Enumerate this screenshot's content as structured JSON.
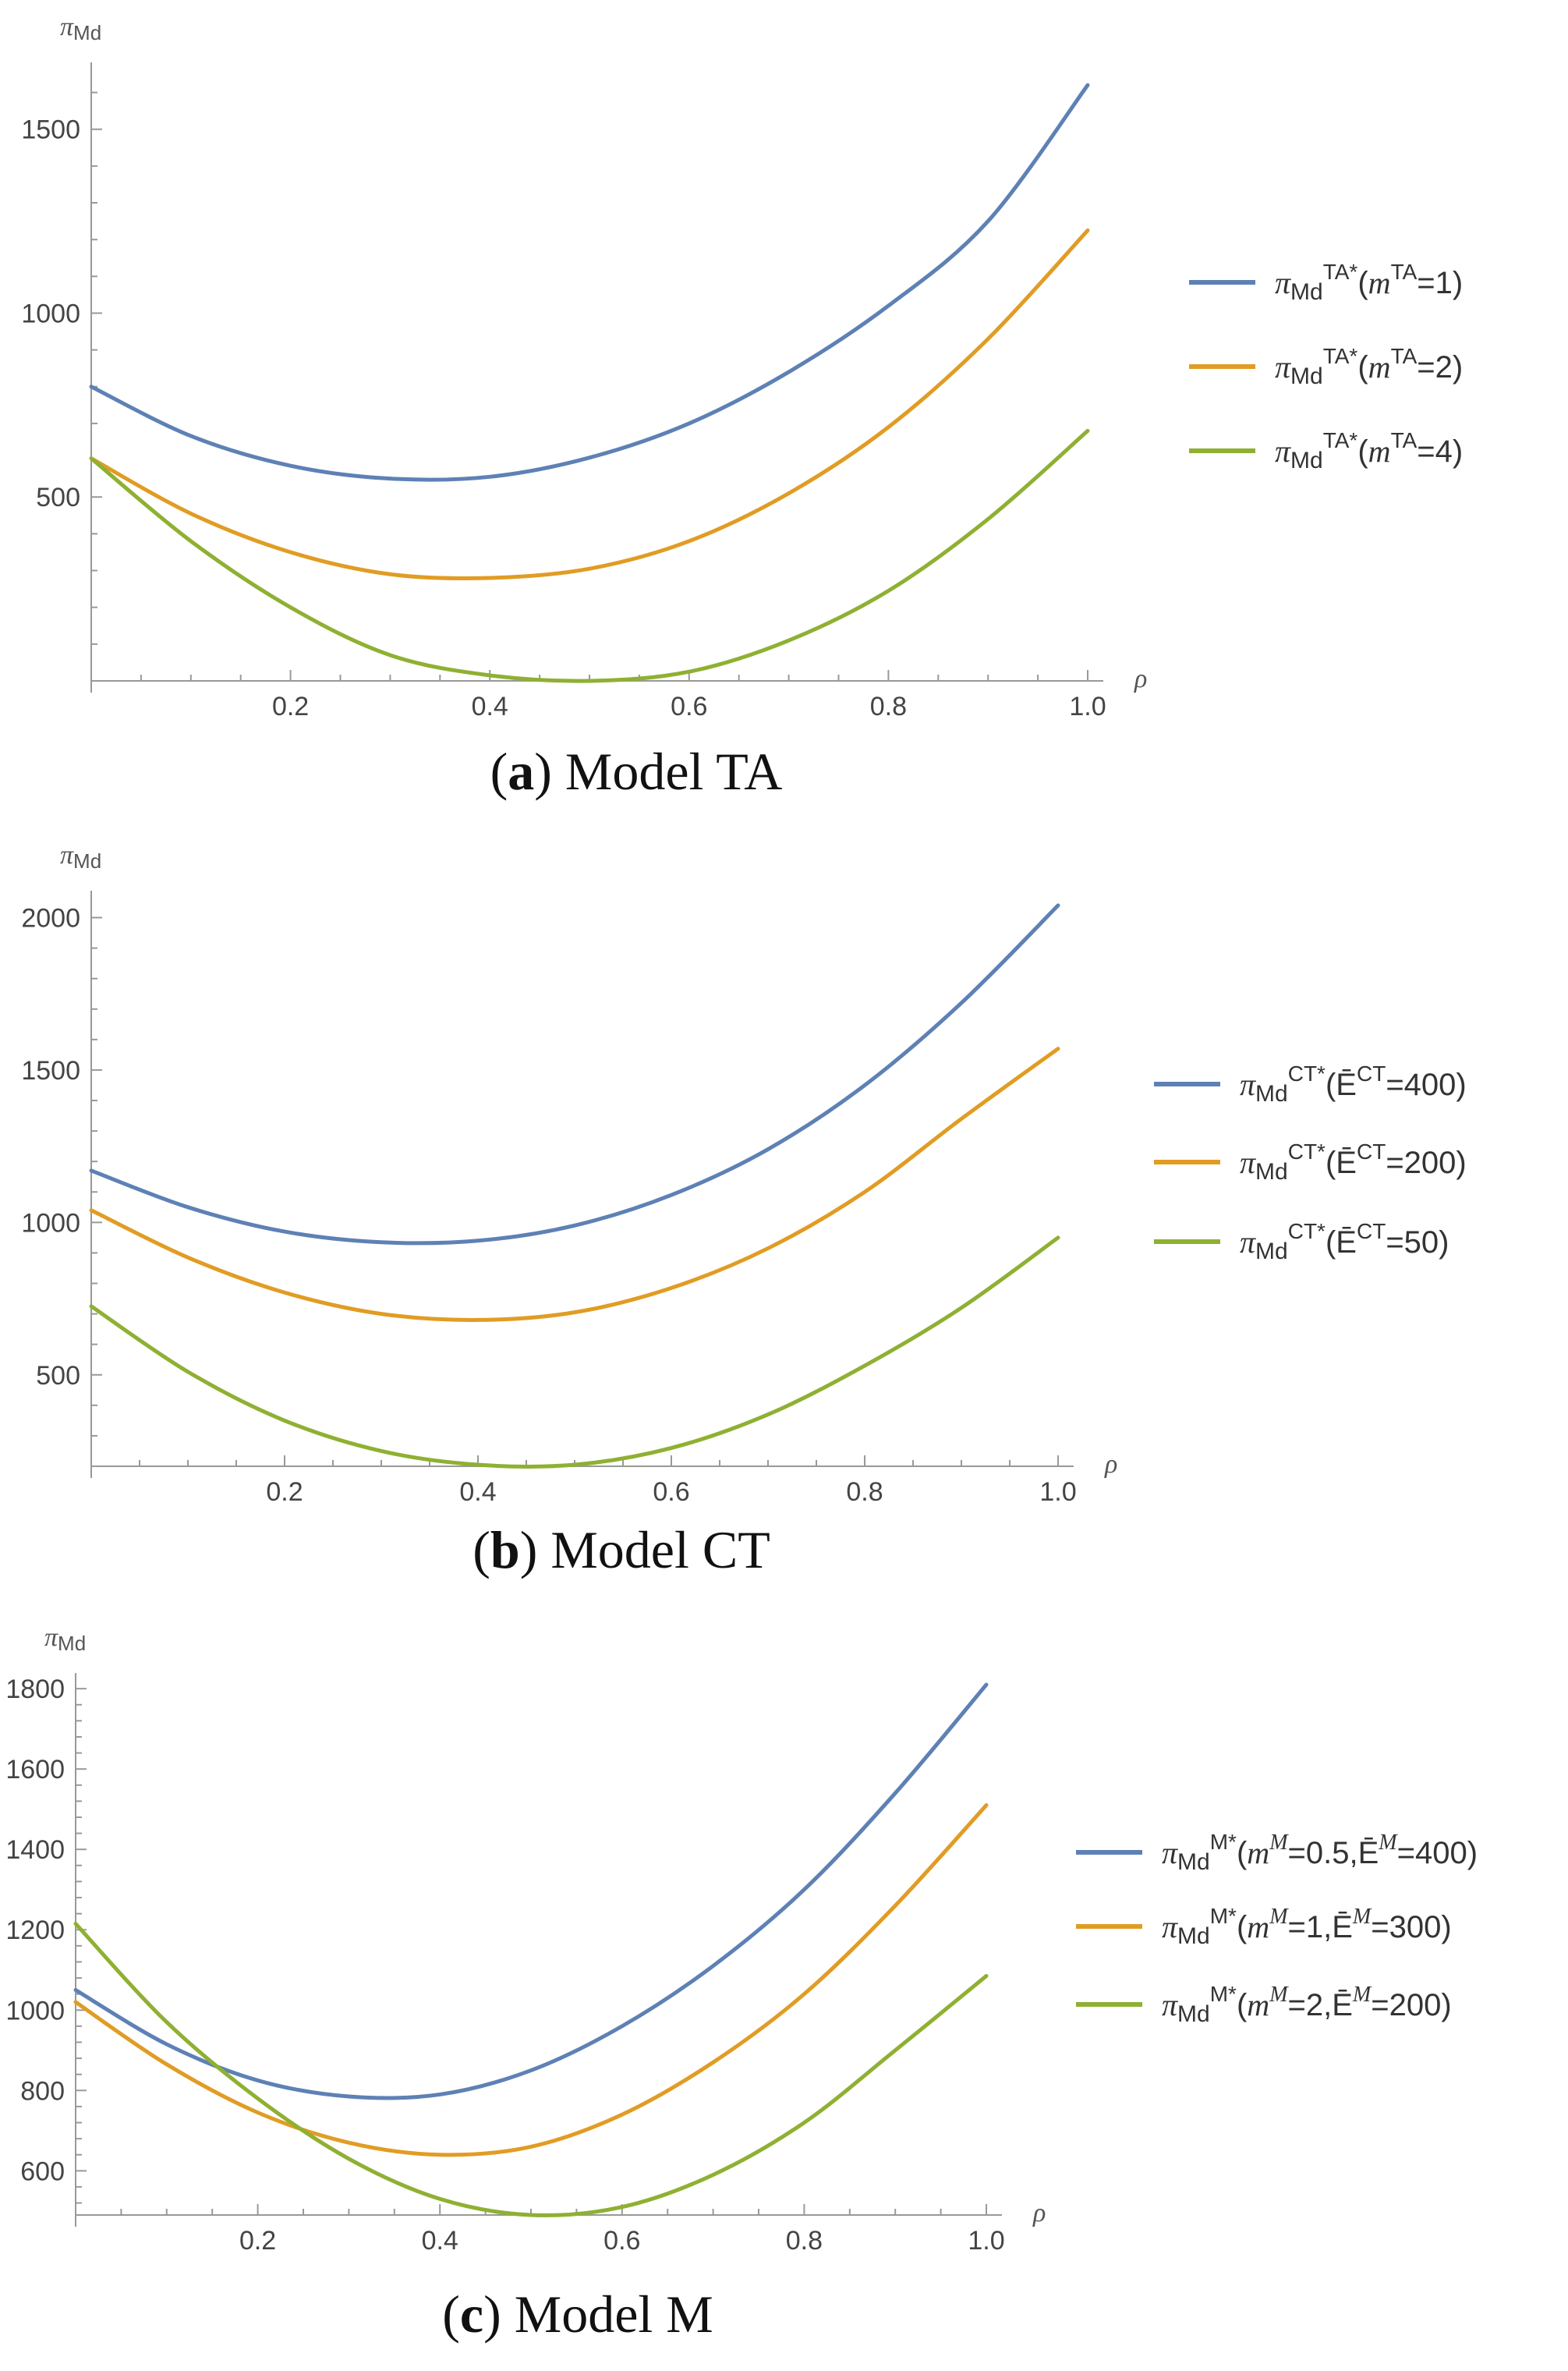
{
  "chart_data": [
    {
      "type": "line",
      "panel_tag": "a",
      "caption": "Model TA",
      "ylabel": "πMd",
      "xlabel": "ρ",
      "xlim": [
        0,
        1.0
      ],
      "ylim": [
        0,
        1650
      ],
      "xticks": [
        0.2,
        0.4,
        0.6,
        0.8,
        1.0
      ],
      "xtick_labels": [
        "0.2",
        "0.4",
        "0.6",
        "0.8",
        "1.0"
      ],
      "yticks": [
        500,
        1000,
        1500
      ],
      "ytick_labels": [
        "500",
        "1000",
        "1500"
      ],
      "x": [
        0,
        0.1,
        0.2,
        0.3,
        0.4,
        0.5,
        0.6,
        0.7,
        0.8,
        0.9,
        1.0
      ],
      "series": [
        {
          "name": "πMdTA*(mTA=1)",
          "legend": {
            "main": "π",
            "sub": "Md",
            "sup": "TA*",
            "var": "m",
            "var_sup": "TA",
            "rest": "=1)"
          },
          "color": "#5e81b5",
          "values": [
            800,
            666,
            585,
            550,
            555,
            607,
            700,
            840,
            1020,
            1250,
            1620
          ]
        },
        {
          "name": "πMdTA*(mTA=2)",
          "legend": {
            "main": "π",
            "sub": "Md",
            "sup": "TA*",
            "var": "m",
            "var_sup": "TA",
            "rest": "=2)"
          },
          "color": "#e19c24",
          "values": [
            605,
            455,
            350,
            290,
            280,
            305,
            380,
            510,
            690,
            930,
            1225
          ]
        },
        {
          "name": "πMdTA*(mTA=4)",
          "legend": {
            "main": "π",
            "sub": "Md",
            "sup": "TA*",
            "var": "m",
            "var_sup": "TA",
            "rest": "=4)"
          },
          "color": "#8fb032",
          "values": [
            605,
            380,
            200,
            70,
            15,
            0,
            25,
            110,
            245,
            440,
            680
          ]
        }
      ]
    },
    {
      "type": "line",
      "panel_tag": "b",
      "caption": "Model CT",
      "ylabel": "πMd",
      "xlabel": "ρ",
      "xlim": [
        0,
        1.0
      ],
      "ylim": [
        200,
        2050
      ],
      "xticks": [
        0.2,
        0.4,
        0.6,
        0.8,
        1.0
      ],
      "xtick_labels": [
        "0.2",
        "0.4",
        "0.6",
        "0.8",
        "1.0"
      ],
      "yticks": [
        500,
        1000,
        1500,
        2000
      ],
      "ytick_labels": [
        "500",
        "1000",
        "1500",
        "2000"
      ],
      "x": [
        0,
        0.1,
        0.2,
        0.3,
        0.4,
        0.5,
        0.6,
        0.7,
        0.8,
        0.9,
        1.0
      ],
      "series": [
        {
          "name": "πMdCT*(ĒCT=400)",
          "legend": {
            "main": "π",
            "sub": "Md",
            "sup": "CT*",
            "var": "Ē",
            "var_sup": "CT",
            "rest": "=400)"
          },
          "color": "#5e81b5",
          "values": [
            1170,
            1050,
            970,
            935,
            940,
            990,
            1090,
            1240,
            1450,
            1720,
            2040
          ]
        },
        {
          "name": "πMdCT*(ĒCT=200)",
          "legend": {
            "main": "π",
            "sub": "Md",
            "sup": "CT*",
            "var": "Ē",
            "var_sup": "CT",
            "rest": "=200)"
          },
          "color": "#e19c24",
          "values": [
            1040,
            885,
            770,
            700,
            680,
            705,
            785,
            915,
            1100,
            1340,
            1570
          ]
        },
        {
          "name": "πMdCT*(ĒCT=50)",
          "legend": {
            "main": "π",
            "sub": "Md",
            "sup": "CT*",
            "var": "Ē",
            "var_sup": "CT",
            "rest": "=50)"
          },
          "color": "#8fb032",
          "values": [
            725,
            510,
            350,
            250,
            205,
            205,
            260,
            370,
            530,
            720,
            950
          ]
        }
      ]
    },
    {
      "type": "line",
      "panel_tag": "c",
      "caption": "Model M",
      "ylabel": "πMd",
      "xlabel": "ρ",
      "xlim": [
        0,
        1.0
      ],
      "ylim": [
        490,
        1810
      ],
      "xticks": [
        0.2,
        0.4,
        0.6,
        0.8,
        1.0
      ],
      "xtick_labels": [
        "0.2",
        "0.4",
        "0.6",
        "0.8",
        "1.0"
      ],
      "yticks": [
        600,
        800,
        1000,
        1200,
        1400,
        1600,
        1800
      ],
      "ytick_labels": [
        "600",
        "800",
        "1000",
        "1200",
        "1400",
        "1600",
        "1800"
      ],
      "x": [
        0,
        0.1,
        0.2,
        0.3,
        0.4,
        0.5,
        0.6,
        0.7,
        0.8,
        0.9,
        1.0
      ],
      "series": [
        {
          "name": "πMdM*(mM=0.5,ĒM=400)",
          "legend": {
            "main": "π",
            "sub": "Md",
            "sup": "M*",
            "var": "m",
            "var_sup": "M",
            "rest": "=0.5,",
            "var2": "Ē",
            "var2_sup": "M",
            "rest2": "=400)"
          },
          "color": "#5e81b5",
          "values": [
            1050,
            915,
            825,
            785,
            790,
            850,
            960,
            1110,
            1300,
            1540,
            1810
          ]
        },
        {
          "name": "πMdM*(mM=1,ĒM=300)",
          "legend": {
            "main": "π",
            "sub": "Md",
            "sup": "M*",
            "var": "m",
            "var_sup": "M",
            "rest": "=1,",
            "var2": "Ē",
            "var2_sup": "M",
            "rest2": "=300)"
          },
          "color": "#e19c24",
          "values": [
            1020,
            865,
            745,
            670,
            640,
            660,
            740,
            870,
            1040,
            1260,
            1510
          ]
        },
        {
          "name": "πMdM*(mM=2,ĒM=200)",
          "legend": {
            "main": "π",
            "sub": "Md",
            "sup": "M*",
            "var": "m",
            "var_sup": "M",
            "rest": "=2,",
            "var2": "Ē",
            "var2_sup": "M",
            "rest2": "=200)"
          },
          "color": "#8fb032",
          "values": [
            1215,
            970,
            780,
            630,
            530,
            490,
            510,
            590,
            720,
            900,
            1085
          ]
        }
      ]
    }
  ]
}
